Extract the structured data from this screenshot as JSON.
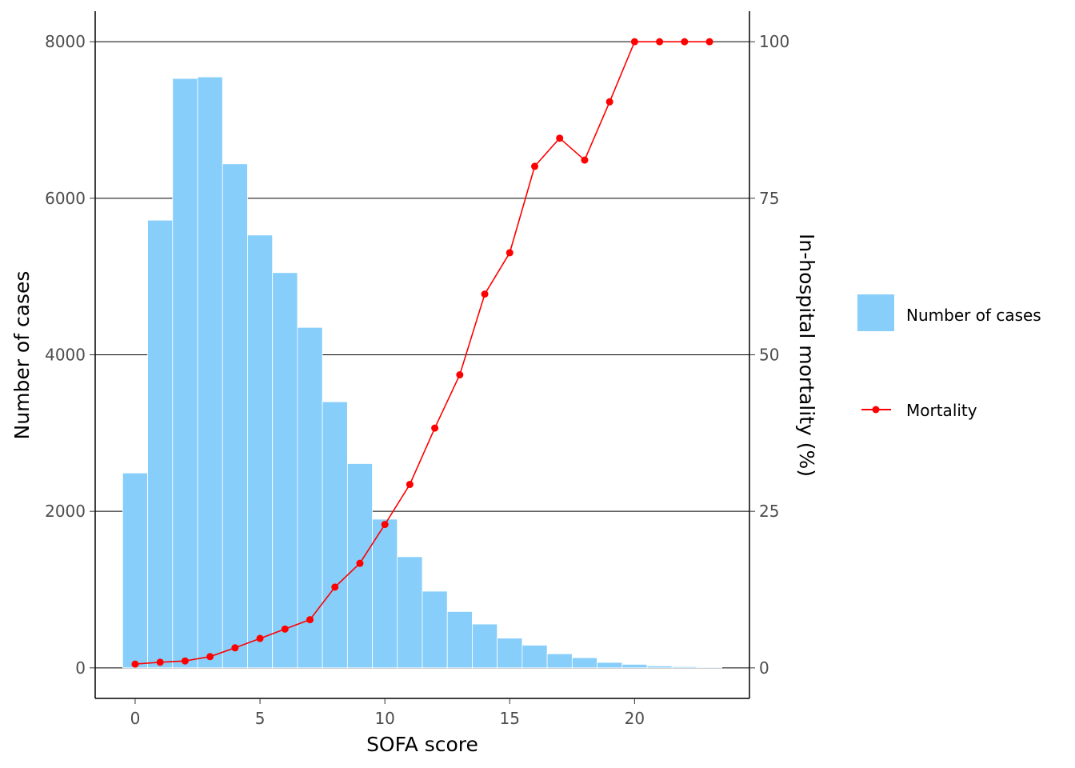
{
  "chart_data": {
    "type": "bar",
    "xlabel": "SOFA score",
    "ylabel": "Number of cases",
    "y2label": "In-hospital mortality (%)",
    "x_ticks": [
      0,
      5,
      10,
      15,
      20
    ],
    "y_ticks": [
      0,
      2000,
      4000,
      6000,
      8000
    ],
    "y2_ticks": [
      0,
      25,
      50,
      75,
      100
    ],
    "xlim": [
      -1.6,
      24.6
    ],
    "ylim": [
      -390,
      8390
    ],
    "y2lim": [
      0,
      100
    ],
    "grid": "horizontal major lines",
    "legend_position": "right",
    "x": [
      0,
      1,
      2,
      3,
      4,
      5,
      6,
      7,
      8,
      9,
      10,
      11,
      12,
      13,
      14,
      15,
      16,
      17,
      18,
      19,
      20,
      21,
      22,
      23
    ],
    "series": [
      {
        "name": "Number of cases",
        "kind": "bar",
        "axis": "left",
        "color": "#87CEFA",
        "values": [
          2490,
          5720,
          7530,
          7550,
          6440,
          5530,
          5050,
          4350,
          3400,
          2610,
          1900,
          1420,
          980,
          720,
          560,
          380,
          290,
          180,
          130,
          70,
          45,
          25,
          15,
          10
        ]
      },
      {
        "name": "Mortality",
        "kind": "line",
        "axis": "right",
        "color": "#FF0000",
        "values": [
          0.6,
          0.9,
          1.1,
          1.8,
          3.2,
          4.7,
          6.2,
          7.7,
          12.9,
          16.7,
          22.9,
          29.3,
          38.3,
          46.8,
          59.7,
          66.3,
          80.1,
          84.6,
          81.1,
          90.4,
          100,
          100,
          100,
          100
        ]
      }
    ]
  }
}
